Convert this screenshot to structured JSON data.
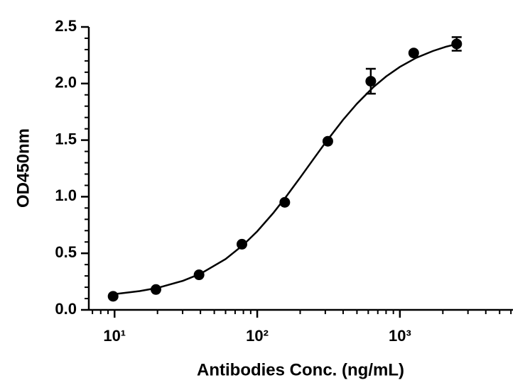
{
  "chart_data": {
    "type": "scatter",
    "x_label": "Antibodies Conc. (ng/mL)",
    "y_label": "OD450nm",
    "x_log": true,
    "color": "#000000",
    "xlim": [
      6.6,
      6200
    ],
    "ylim": [
      0,
      2.5
    ],
    "xticks": [
      {
        "value": 10,
        "label": "10¹"
      },
      {
        "value": 100,
        "label": "10²"
      },
      {
        "value": 1000,
        "label": "10³"
      }
    ],
    "xminor_ticks": [
      7,
      8,
      9,
      20,
      30,
      40,
      50,
      60,
      70,
      80,
      90,
      200,
      300,
      400,
      500,
      600,
      700,
      800,
      900,
      2000,
      3000,
      4000,
      5000,
      6000
    ],
    "yticks": [
      {
        "value": 0,
        "label": "0.0"
      },
      0.5,
      {
        "value": 1,
        "label": "1.0"
      },
      1.5,
      {
        "value": 2,
        "label": "2.0"
      },
      2.5
    ],
    "yminor_ticks": [
      0.1,
      0.2,
      0.3,
      0.4,
      0.6,
      0.7,
      0.8,
      0.9,
      1.1,
      1.2,
      1.3,
      1.4,
      1.6,
      1.7,
      1.8,
      1.9,
      2.1,
      2.2,
      2.3,
      2.4
    ],
    "points": {
      "x": [
        9.77,
        19.5,
        39.1,
        78.1,
        156,
        312.5,
        625,
        1250,
        2500
      ],
      "values": [
        0.12,
        0.18,
        0.31,
        0.58,
        0.95,
        1.49,
        2.02,
        2.27,
        2.35
      ],
      "errors": [
        null,
        null,
        null,
        null,
        null,
        null,
        0.11,
        null,
        0.06
      ]
    },
    "curve": {
      "x": [
        9.77,
        15,
        20,
        30,
        40,
        60,
        80,
        100,
        130,
        160,
        200,
        250,
        300,
        400,
        500,
        650,
        800,
        1000,
        1300,
        1700,
        2100,
        2500
      ],
      "values": [
        0.138,
        0.166,
        0.194,
        0.256,
        0.319,
        0.449,
        0.575,
        0.694,
        0.858,
        1.003,
        1.169,
        1.339,
        1.476,
        1.68,
        1.822,
        1.967,
        2.062,
        2.147,
        2.227,
        2.287,
        2.325,
        2.349
      ]
    }
  }
}
